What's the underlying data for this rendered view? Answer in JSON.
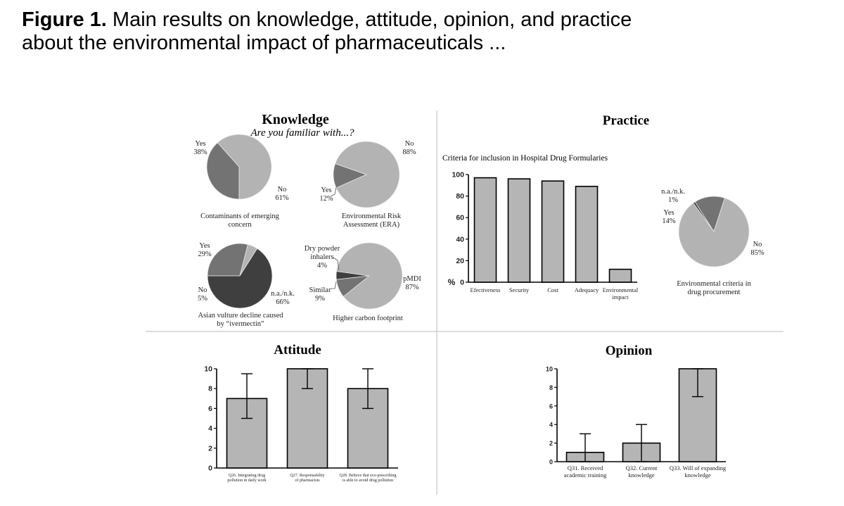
{
  "figure": {
    "label": "Figure 1.",
    "caption_line1": "Main results on knowledge, attitude, opinion, and practice",
    "caption_line2": "about the environmental impact of pharmaceuticals ..."
  },
  "colors": {
    "light": "#b3b3b3",
    "mid": "#737373",
    "dark": "#3f3f3f",
    "frame": "#000000",
    "divider": "#bbbbbb"
  },
  "knowledge": {
    "title": "Knowledge",
    "subtitle": "Are you familiar with...?",
    "pies": [
      {
        "caption": [
          "Contaminants of emerging",
          "concern"
        ],
        "slices": [
          {
            "label": "Yes",
            "pct_text": "38%",
            "value": 38,
            "color": "mid"
          },
          {
            "label": "No",
            "pct_text": "61%",
            "value": 61,
            "color": "light"
          }
        ]
      },
      {
        "caption": [
          "Environmental Risk",
          "Assessment (ERA)"
        ],
        "slices": [
          {
            "label": "Yes",
            "pct_text": "12%",
            "value": 12,
            "color": "mid"
          },
          {
            "label": "No",
            "pct_text": "88%",
            "value": 88,
            "color": "light"
          }
        ]
      },
      {
        "caption": [
          "Asian vulture decline caused",
          "by “ivermectin”"
        ],
        "slices": [
          {
            "label": "Yes",
            "pct_text": "29%",
            "value": 29,
            "color": "mid"
          },
          {
            "label": "No",
            "pct_text": "5%",
            "value": 5,
            "color": "light"
          },
          {
            "label": "n.a./n.k.",
            "pct_text": "66%",
            "value": 66,
            "color": "dark"
          }
        ]
      },
      {
        "caption": [
          "Higher carbon footprint"
        ],
        "slices": [
          {
            "label": "Dry powder inhalers",
            "pct_text": "4%",
            "value": 4,
            "color": "dark"
          },
          {
            "label": "Similar",
            "pct_text": "9%",
            "value": 9,
            "color": "mid"
          },
          {
            "label": "pMDI",
            "pct_text": "87%",
            "value": 87,
            "color": "light"
          }
        ]
      }
    ]
  },
  "practice": {
    "title": "Practice",
    "bar_title": "Criteria for inclusion in Hospital Drug Formularies",
    "pie_caption": [
      "Environmental criteria in",
      "drug procurement"
    ],
    "pie_slices": [
      {
        "label": "n.a./n.k.",
        "pct_text": "1%",
        "value": 1,
        "color": "dark"
      },
      {
        "label": "Yes",
        "pct_text": "14%",
        "value": 14,
        "color": "mid"
      },
      {
        "label": "No",
        "pct_text": "85%",
        "value": 85,
        "color": "light"
      }
    ]
  },
  "attitude": {
    "title": "Attitude"
  },
  "opinion": {
    "title": "Opinion"
  },
  "chart_data": [
    {
      "type": "pie",
      "title": "Contaminants of emerging concern",
      "slices": [
        {
          "label": "Yes",
          "value": 38
        },
        {
          "label": "No",
          "value": 61
        }
      ]
    },
    {
      "type": "pie",
      "title": "Environmental Risk Assessment (ERA)",
      "slices": [
        {
          "label": "Yes",
          "value": 12
        },
        {
          "label": "No",
          "value": 88
        }
      ]
    },
    {
      "type": "pie",
      "title": "Asian vulture decline caused by “ivermectin”",
      "slices": [
        {
          "label": "Yes",
          "value": 29
        },
        {
          "label": "No",
          "value": 5
        },
        {
          "label": "n.a./n.k.",
          "value": 66
        }
      ]
    },
    {
      "type": "pie",
      "title": "Higher carbon footprint",
      "slices": [
        {
          "label": "Dry powder inhalers",
          "value": 4
        },
        {
          "label": "Similar",
          "value": 9
        },
        {
          "label": "pMDI",
          "value": 87
        }
      ]
    },
    {
      "type": "bar",
      "title": "Criteria for inclusion in Hospital Drug Formularies",
      "ylabel": "%",
      "ylim": [
        0,
        100
      ],
      "yticks": [
        0,
        20,
        40,
        60,
        80,
        100
      ],
      "categories": [
        "Efectiveness",
        "Security",
        "Cost",
        "Adequacy",
        "Environmental impact"
      ],
      "category_lines": [
        [
          "Efectiveness"
        ],
        [
          "Security"
        ],
        [
          "Cost"
        ],
        [
          "Adequacy"
        ],
        [
          "Environmental",
          "impact"
        ]
      ],
      "values": [
        97,
        96,
        94,
        89,
        12
      ]
    },
    {
      "type": "pie",
      "title": "Environmental criteria in drug procurement",
      "slices": [
        {
          "label": "n.a./n.k.",
          "value": 1
        },
        {
          "label": "Yes",
          "value": 14
        },
        {
          "label": "No",
          "value": 85
        }
      ]
    },
    {
      "type": "bar",
      "title": "Attitude",
      "ylim": [
        0,
        10
      ],
      "yticks": [
        0,
        2,
        4,
        6,
        8,
        10
      ],
      "categories": [
        "Q26. Integrating drug pollution in daily work",
        "Q27. Responsability of pharmacists",
        "Q28. Believe that eco-prescribing is able to avoid drug pollution"
      ],
      "category_lines": [
        [
          "Q26. Integrating drug",
          "pollution in daily work"
        ],
        [
          "Q27. Responsability",
          "of pharmacists"
        ],
        [
          "Q28. Believe that eco-prescribing",
          "is able to avoid drug pollution"
        ]
      ],
      "values": [
        7,
        10,
        8
      ],
      "error_low": [
        5,
        8,
        6
      ],
      "error_high": [
        9.5,
        10,
        10
      ]
    },
    {
      "type": "bar",
      "title": "Opinion",
      "ylim": [
        0,
        10
      ],
      "yticks": [
        0,
        2,
        4,
        6,
        8,
        10
      ],
      "categories": [
        "Q31. Received academic training",
        "Q32. Current knowledge",
        "Q33. Will of expanding knowledge"
      ],
      "category_lines": [
        [
          "Q31. Received",
          "academic training"
        ],
        [
          "Q32. Current",
          "knowledge"
        ],
        [
          "Q33. Will of expanding",
          "knowledge"
        ]
      ],
      "values": [
        1,
        2,
        10
      ],
      "error_low": [
        0,
        0,
        7
      ],
      "error_high": [
        3,
        4,
        10
      ]
    }
  ]
}
